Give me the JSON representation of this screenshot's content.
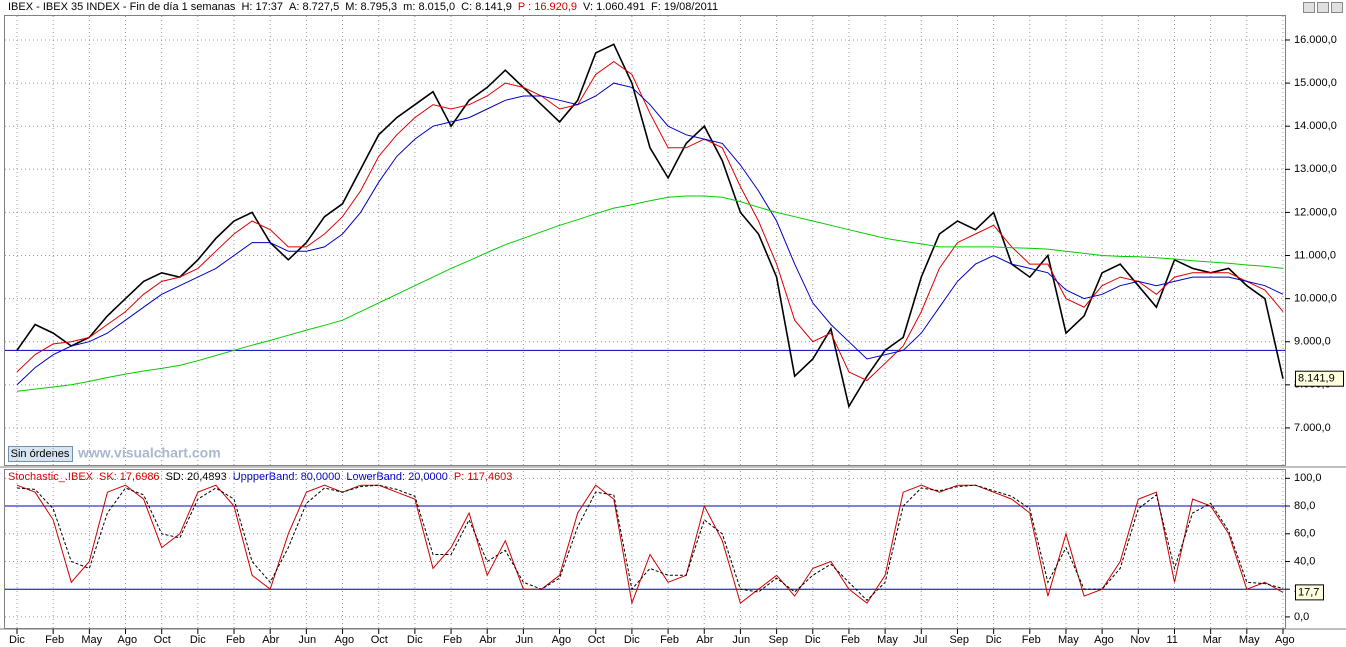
{
  "chart_data": [
    {
      "type": "line",
      "title": [
        "IBEX - IBEX 35 INDEX - Fin de día 1 semanas",
        "H: 17:37",
        "A: 8.727,5",
        "M: 8.795,3",
        "m: 8.015,0",
        "C: 8.141,9",
        "P : 16.920,9",
        "V: 1.060.491",
        "F: 19/08/2011"
      ],
      "title_colors": [
        "#000000",
        "#000000",
        "#000000",
        "#000000",
        "#000000",
        "#000000",
        "#d00000",
        "#000000",
        "#000000"
      ],
      "ylim": [
        6140,
        16580
      ],
      "yticks": [
        {
          "value": 7000,
          "label": "7.000,0"
        },
        {
          "value": 8000,
          "label": "8.000,0"
        },
        {
          "value": 9000,
          "label": "9.000,0"
        },
        {
          "value": 10000,
          "label": "10.000,0"
        },
        {
          "value": 11000,
          "label": "11.000,0"
        },
        {
          "value": 12000,
          "label": "12.000,0"
        },
        {
          "value": 13000,
          "label": "13.000,0"
        },
        {
          "value": 14000,
          "label": "14.000,0"
        },
        {
          "value": 15000,
          "label": "15.000,0"
        },
        {
          "value": 16000,
          "label": "16.000,0"
        }
      ],
      "hlines": [
        8800
      ],
      "grid": true,
      "last_label": "8.141,9",
      "series": [
        {
          "name": "IBEX",
          "color": "#000000",
          "values": [
            8800,
            9400,
            9200,
            8900,
            9100,
            9600,
            10000,
            10400,
            10600,
            10500,
            10900,
            11400,
            11800,
            12000,
            11300,
            10900,
            11300,
            11900,
            12200,
            13000,
            13800,
            14200,
            14500,
            14800,
            14000,
            14600,
            14900,
            15300,
            14900,
            14500,
            14100,
            14600,
            15700,
            15900,
            15000,
            13500,
            12800,
            13600,
            14000,
            13200,
            12000,
            11500,
            10500,
            8200,
            8600,
            9300,
            7500,
            8200,
            8800,
            9100,
            10500,
            11500,
            11800,
            11600,
            12000,
            10800,
            10500,
            11000,
            9200,
            9600,
            10600,
            10800,
            10300,
            9800,
            10900,
            10700,
            10600,
            10700,
            10300,
            10000,
            8141.9
          ]
        },
        {
          "name": "MA fast",
          "color": "#e00000",
          "values": [
            8300,
            8700,
            8950,
            9000,
            9100,
            9400,
            9700,
            10100,
            10400,
            10500,
            10700,
            11100,
            11500,
            11800,
            11600,
            11200,
            11200,
            11500,
            11900,
            12500,
            13300,
            13800,
            14200,
            14500,
            14400,
            14500,
            14700,
            15000,
            14900,
            14700,
            14400,
            14500,
            15200,
            15500,
            15200,
            14300,
            13500,
            13500,
            13700,
            13500,
            12600,
            11800,
            10800,
            9500,
            9000,
            9200,
            8300,
            8100,
            8500,
            8900,
            9700,
            10700,
            11300,
            11500,
            11700,
            11200,
            10800,
            10800,
            10000,
            9800,
            10300,
            10500,
            10400,
            10100,
            10500,
            10600,
            10600,
            10600,
            10400,
            10200,
            9700
          ]
        },
        {
          "name": "MA mid",
          "color": "#0000c0",
          "values": [
            8000,
            8400,
            8700,
            8900,
            9000,
            9200,
            9500,
            9800,
            10100,
            10300,
            10500,
            10700,
            11000,
            11300,
            11300,
            11100,
            11100,
            11200,
            11500,
            12000,
            12700,
            13300,
            13700,
            14000,
            14100,
            14200,
            14400,
            14600,
            14700,
            14700,
            14600,
            14500,
            14700,
            15000,
            14900,
            14500,
            14000,
            13800,
            13700,
            13600,
            13100,
            12500,
            11800,
            10800,
            9900,
            9400,
            9000,
            8600,
            8700,
            8800,
            9200,
            9800,
            10400,
            10800,
            11000,
            10800,
            10700,
            10600,
            10200,
            10000,
            10100,
            10300,
            10400,
            10300,
            10400,
            10500,
            10500,
            10500,
            10400,
            10300,
            10100
          ]
        },
        {
          "name": "MA slow",
          "color": "#00cc00",
          "values": [
            7850,
            7900,
            7950,
            8000,
            8080,
            8170,
            8250,
            8320,
            8380,
            8450,
            8560,
            8680,
            8800,
            8920,
            9030,
            9150,
            9270,
            9380,
            9500,
            9700,
            9900,
            10100,
            10300,
            10500,
            10700,
            10880,
            11070,
            11250,
            11400,
            11550,
            11700,
            11830,
            11970,
            12100,
            12180,
            12270,
            12350,
            12380,
            12380,
            12350,
            12250,
            12120,
            12000,
            11900,
            11800,
            11700,
            11600,
            11500,
            11400,
            11330,
            11270,
            11200,
            11200,
            11200,
            11200,
            11180,
            11170,
            11150,
            11100,
            11050,
            11000,
            10980,
            10970,
            10950,
            10920,
            10880,
            10850,
            10820,
            10780,
            10750,
            10700
          ]
        }
      ]
    },
    {
      "type": "line",
      "title": [
        "Stochastic_.IBEX",
        "SK: 17,6986",
        "SD: 20,4893",
        "UppperBand: 80,0000",
        "LowerBand: 20,0000",
        "P: 117,4603"
      ],
      "title_colors": [
        "#d00000",
        "#d00000",
        "#000000",
        "#0000c0",
        "#0000c0",
        "#d00000"
      ],
      "categories": [
        "Dic",
        null,
        "Feb",
        null,
        "May",
        null,
        "Ago",
        null,
        "Oct",
        null,
        "Dic",
        null,
        "Feb",
        null,
        "Abr",
        null,
        "Jun",
        null,
        "Ago",
        null,
        "Oct",
        null,
        "Dic",
        null,
        "Feb",
        null,
        "Abr",
        null,
        "Jun",
        null,
        "Ago",
        null,
        "Oct",
        null,
        "Dic",
        null,
        "Feb",
        null,
        "Abr",
        null,
        "Jun",
        null,
        "Sep",
        null,
        "Dic",
        null,
        "Feb",
        null,
        "May",
        null,
        "Jul",
        null,
        "Sep",
        null,
        "Dic",
        null,
        "Feb",
        null,
        "May",
        null,
        "Ago",
        null,
        "Nov",
        null,
        "11",
        null,
        "Mar",
        null,
        "May",
        null,
        "Ago"
      ],
      "ylim": [
        -8,
        106
      ],
      "yticks": [
        {
          "value": 0,
          "label": "0,0"
        },
        {
          "value": 20,
          "label": "20,0"
        },
        {
          "value": 40,
          "label": "40,0"
        },
        {
          "value": 60,
          "label": "60,0"
        },
        {
          "value": 80,
          "label": "80,0"
        },
        {
          "value": 100,
          "label": "100,0"
        }
      ],
      "hlines": [
        80,
        20
      ],
      "grid": true,
      "last_label": "17,7",
      "series": [
        {
          "name": "SK",
          "color": "#d00000",
          "values": [
            95,
            90,
            70,
            25,
            40,
            90,
            95,
            85,
            50,
            60,
            90,
            95,
            80,
            30,
            20,
            60,
            90,
            95,
            90,
            95,
            95,
            90,
            85,
            35,
            50,
            75,
            30,
            55,
            20,
            20,
            30,
            75,
            95,
            85,
            10,
            45,
            25,
            30,
            80,
            55,
            10,
            20,
            30,
            15,
            35,
            40,
            20,
            10,
            30,
            90,
            95,
            90,
            95,
            95,
            90,
            85,
            75,
            15,
            60,
            15,
            20,
            40,
            85,
            90,
            25,
            85,
            80,
            60,
            20,
            25,
            17.6986
          ]
        },
        {
          "name": "SD",
          "color": "#000000",
          "dash": true,
          "values": [
            93,
            92,
            78,
            40,
            35,
            75,
            93,
            88,
            60,
            57,
            85,
            93,
            85,
            40,
            25,
            50,
            82,
            93,
            90,
            94,
            95,
            92,
            87,
            45,
            45,
            70,
            40,
            48,
            25,
            20,
            28,
            65,
            90,
            88,
            20,
            35,
            30,
            30,
            70,
            60,
            20,
            18,
            28,
            18,
            30,
            38,
            25,
            12,
            25,
            80,
            93,
            91,
            94,
            95,
            91,
            87,
            78,
            25,
            50,
            20,
            20,
            35,
            78,
            88,
            35,
            75,
            82,
            62,
            25,
            24,
            20.4893
          ]
        }
      ]
    }
  ],
  "ui": {
    "button": "Sin órdenes",
    "watermark": "www.visualchart.com"
  }
}
